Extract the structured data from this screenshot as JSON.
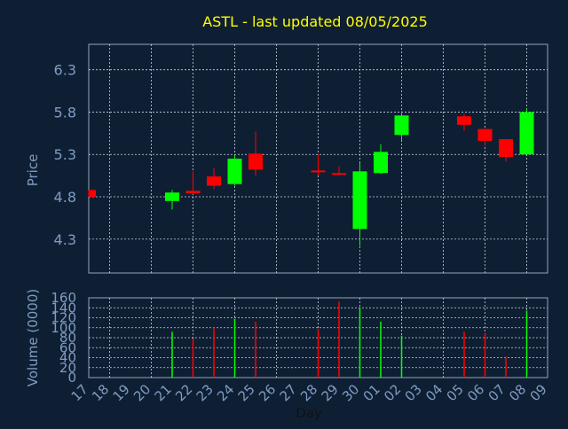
{
  "chart_data": [
    {
      "type": "candlestick",
      "title": "ASTL - last updated 08/05/2025",
      "ylabel": "Price",
      "ylim": [
        3.9,
        6.6
      ],
      "y_ticks": [
        "6.3",
        "5.8",
        "5.3",
        "4.8",
        "4.3"
      ],
      "grid": true,
      "colors": {
        "up": "#00ff00",
        "down": "#ff0000"
      },
      "candles": [
        {
          "day": "17",
          "open": 4.88,
          "high": 4.88,
          "low": 4.8,
          "close": 4.8
        },
        {
          "day": "21",
          "open": 4.75,
          "high": 4.88,
          "low": 4.65,
          "close": 4.85
        },
        {
          "day": "22",
          "open": 4.87,
          "high": 5.1,
          "low": 4.83,
          "close": 4.84
        },
        {
          "day": "23",
          "open": 5.04,
          "high": 5.14,
          "low": 4.89,
          "close": 4.93
        },
        {
          "day": "24",
          "open": 4.95,
          "high": 5.28,
          "low": 4.93,
          "close": 5.25
        },
        {
          "day": "25",
          "open": 5.31,
          "high": 5.57,
          "low": 5.05,
          "close": 5.12
        },
        {
          "day": "28",
          "open": 5.11,
          "high": 5.3,
          "low": 5.05,
          "close": 5.1
        },
        {
          "day": "29",
          "open": 5.08,
          "high": 5.16,
          "low": 5.06,
          "close": 5.06
        },
        {
          "day": "30",
          "open": 4.42,
          "high": 5.2,
          "low": 4.22,
          "close": 5.1
        },
        {
          "day": "01",
          "open": 5.08,
          "high": 5.42,
          "low": 5.07,
          "close": 5.33
        },
        {
          "day": "02",
          "open": 5.53,
          "high": 5.81,
          "low": 5.47,
          "close": 5.76
        },
        {
          "day": "05",
          "open": 5.75,
          "high": 5.78,
          "low": 5.58,
          "close": 5.65
        },
        {
          "day": "06",
          "open": 5.6,
          "high": 5.61,
          "low": 5.4,
          "close": 5.46
        },
        {
          "day": "07",
          "open": 5.48,
          "high": 5.48,
          "low": 5.22,
          "close": 5.27
        },
        {
          "day": "08",
          "open": 5.3,
          "high": 5.84,
          "low": 5.3,
          "close": 5.8
        }
      ]
    },
    {
      "type": "bar",
      "ylabel": "Volume (0000)",
      "xlabel": "Day",
      "ylim": [
        0,
        160
      ],
      "y_ticks": [
        "160",
        "140",
        "120",
        "100",
        "80",
        "60",
        "40",
        "20",
        "0"
      ],
      "categories": [
        "17",
        "18",
        "19",
        "20",
        "21",
        "22",
        "23",
        "24",
        "25",
        "26",
        "27",
        "28",
        "29",
        "30",
        "01",
        "02",
        "03",
        "04",
        "05",
        "06",
        "07",
        "08",
        "09"
      ],
      "bars": [
        {
          "day": "21",
          "value": 92,
          "color": "#00ff00"
        },
        {
          "day": "22",
          "value": 78,
          "color": "#ff0000"
        },
        {
          "day": "23",
          "value": 100,
          "color": "#ff0000"
        },
        {
          "day": "24",
          "value": 118,
          "color": "#00ff00"
        },
        {
          "day": "25",
          "value": 112,
          "color": "#ff0000"
        },
        {
          "day": "28",
          "value": 98,
          "color": "#ff0000"
        },
        {
          "day": "29",
          "value": 152,
          "color": "#ff0000"
        },
        {
          "day": "30",
          "value": 140,
          "color": "#00ff00"
        },
        {
          "day": "01",
          "value": 112,
          "color": "#00ff00"
        },
        {
          "day": "02",
          "value": 84,
          "color": "#00ff00"
        },
        {
          "day": "05",
          "value": 92,
          "color": "#ff0000"
        },
        {
          "day": "06",
          "value": 88,
          "color": "#ff0000"
        },
        {
          "day": "07",
          "value": 42,
          "color": "#ff0000"
        },
        {
          "day": "08",
          "value": 134,
          "color": "#00ff00"
        }
      ]
    }
  ]
}
